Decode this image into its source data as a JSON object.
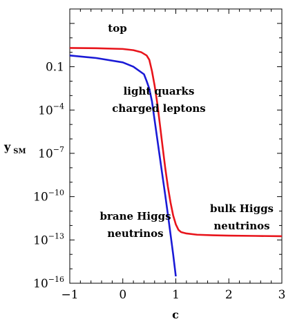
{
  "chart_data": {
    "type": "line",
    "title": "",
    "xlabel": "c",
    "ylabel": {
      "main": "y",
      "sub": "SM"
    },
    "x_scale": "linear",
    "y_scale": "log",
    "xlim": [
      -1,
      3
    ],
    "ylim": [
      1e-16,
      1000.0
    ],
    "grid": false,
    "x_ticks": [
      -1,
      0,
      1,
      2,
      3
    ],
    "x_tick_labels": [
      "−1",
      "0",
      "1",
      "2",
      "3"
    ],
    "y_ticks": [
      {
        "value": 1e-16,
        "base": "10",
        "exp": "−16"
      },
      {
        "value": 1e-13,
        "base": "10",
        "exp": "−13"
      },
      {
        "value": 1e-10,
        "base": "10",
        "exp": "−10"
      },
      {
        "value": 1e-07,
        "base": "10",
        "exp": "−7"
      },
      {
        "value": 0.0001,
        "base": "10",
        "exp": "−4"
      },
      {
        "value": 0.1,
        "base": "0.1",
        "exp": ""
      }
    ],
    "series": [
      {
        "color": "#e8141b",
        "x": [
          -1,
          -0.5,
          0,
          0.2,
          0.35,
          0.45,
          0.5,
          0.55,
          0.6,
          0.65,
          0.7,
          0.75,
          0.8,
          0.85,
          0.9,
          0.95,
          1.0,
          1.05,
          1.1,
          1.2,
          1.4,
          1.7,
          2.0,
          2.5,
          3.0
        ],
        "y": [
          2,
          1.9,
          1.7,
          1.4,
          1,
          0.6,
          0.3,
          0.05,
          0.005,
          0.0003,
          1e-05,
          3e-07,
          1e-08,
          5e-10,
          4e-11,
          5e-12,
          1.2e-12,
          5e-13,
          3.5e-13,
          2.8e-13,
          2.3e-13,
          2.1e-13,
          2e-13,
          1.9e-13,
          1.8e-13
        ]
      },
      {
        "color": "#1a1ad6",
        "x": [
          -1,
          -0.5,
          0,
          0.2,
          0.4,
          0.45,
          0.5,
          0.55,
          0.6,
          0.65,
          0.7,
          0.75,
          0.8,
          0.85,
          0.9,
          0.95,
          1.0
        ],
        "y": [
          0.6,
          0.4,
          0.2,
          0.1,
          0.03,
          0.01,
          0.003,
          0.0004,
          2e-05,
          1e-06,
          5e-08,
          2.5e-09,
          1.3e-10,
          6e-12,
          2.5e-13,
          1e-14,
          3e-16
        ]
      }
    ],
    "annotations": [
      {
        "lines": [
          "top"
        ]
      },
      {
        "lines": [
          "light quarks",
          "charged leptons"
        ]
      },
      {
        "lines": [
          "brane Higgs",
          "neutrinos"
        ]
      },
      {
        "lines": [
          "bulk Higgs",
          "neutrinos"
        ]
      }
    ]
  }
}
